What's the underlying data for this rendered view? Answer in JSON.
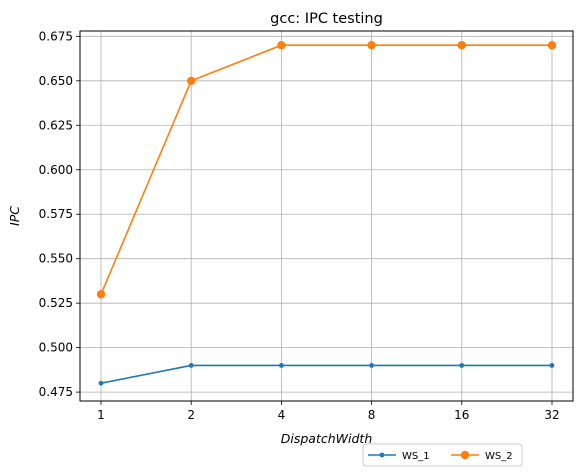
{
  "chart_data": {
    "type": "line",
    "title": "gcc: IPC testing",
    "xlabel": "DispatchWidth",
    "ylabel": "IPC",
    "categories": [
      "1",
      "2",
      "4",
      "8",
      "16",
      "32"
    ],
    "ylim": [
      0.47,
      0.678
    ],
    "yticks": [
      0.475,
      0.5,
      0.525,
      0.55,
      0.575,
      0.6,
      0.625,
      0.65,
      0.675
    ],
    "ytick_labels": [
      "0.475",
      "0.500",
      "0.525",
      "0.550",
      "0.575",
      "0.600",
      "0.625",
      "0.650",
      "0.675"
    ],
    "grid": true,
    "legend_position": "bottom-right outside",
    "series": [
      {
        "name": "WS_1",
        "values": [
          0.48,
          0.49,
          0.49,
          0.49,
          0.49,
          0.49
        ],
        "color": "#1f77b4",
        "marker_size": "small"
      },
      {
        "name": "WS_2",
        "values": [
          0.53,
          0.65,
          0.67,
          0.67,
          0.67,
          0.67
        ],
        "color": "#ff7f0e",
        "marker_size": "large"
      }
    ]
  }
}
